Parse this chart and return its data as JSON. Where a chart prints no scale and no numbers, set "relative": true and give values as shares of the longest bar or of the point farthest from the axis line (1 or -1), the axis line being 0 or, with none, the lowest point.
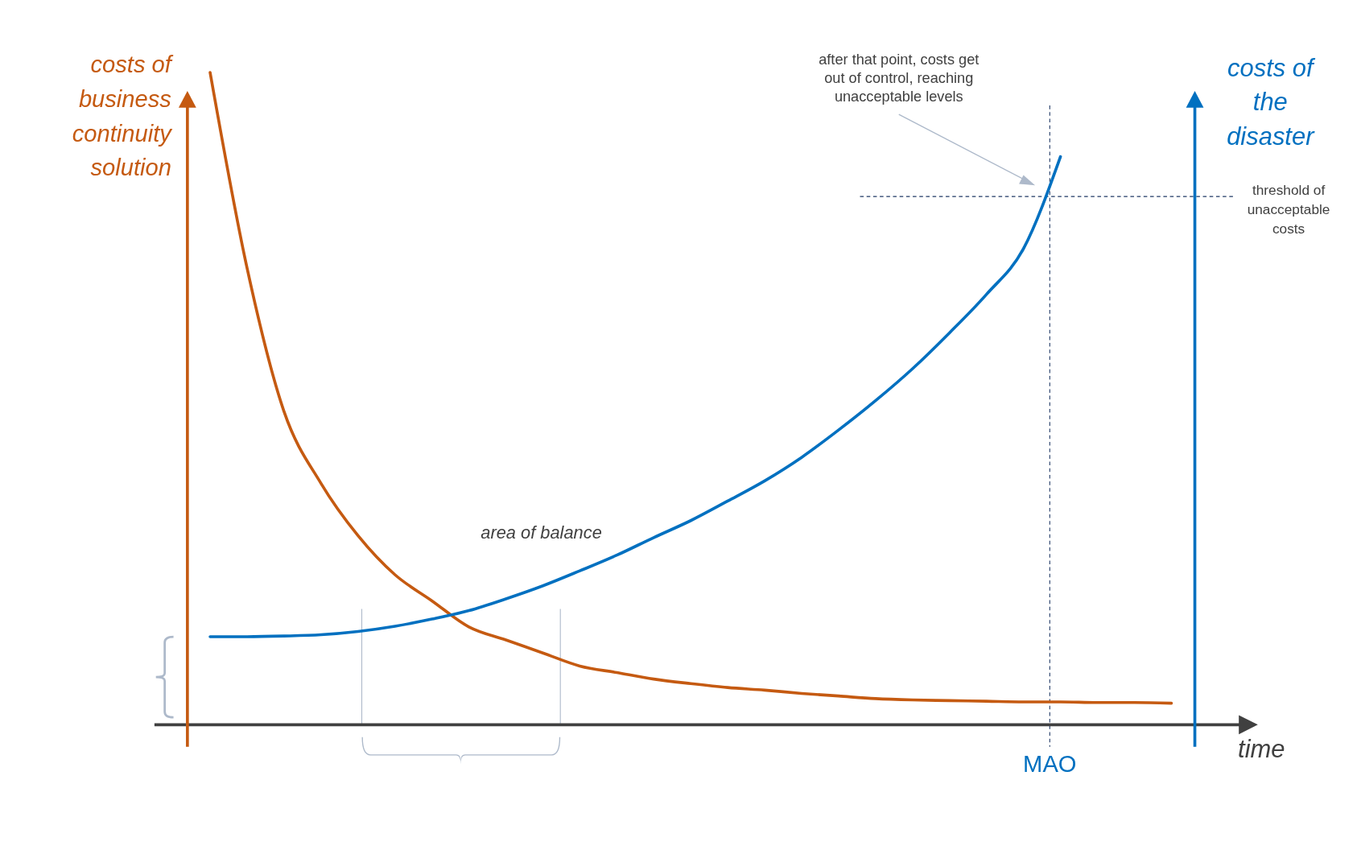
{
  "chart_data": {
    "type": "line",
    "relative": true,
    "xlabel": "time",
    "ylabel": "costs of business continuity solution",
    "y2label": "costs of the disaster",
    "categories": [
      null,
      null,
      null,
      null,
      null,
      null,
      null,
      null,
      null,
      null,
      null,
      null,
      null,
      null,
      null,
      null,
      null,
      null,
      null,
      null,
      null,
      null,
      null,
      null,
      null,
      null,
      null
    ],
    "series": [
      {
        "color": "#c55a11",
        "values": [
          1.0,
          0.7,
          0.48,
          0.37,
          0.29,
          0.23,
          0.19,
          0.15,
          0.13,
          0.11,
          0.09,
          0.08,
          0.07,
          0.063,
          0.057,
          0.053,
          0.048,
          0.044,
          0.04,
          0.038,
          0.037,
          0.036,
          0.035,
          0.035,
          0.034,
          0.034,
          0.033
        ]
      },
      {
        "color": "#0070c0",
        "values": [
          0.135,
          0.135,
          0.136,
          0.138,
          0.143,
          0.151,
          0.162,
          0.175,
          0.193,
          0.213,
          0.236,
          0.26,
          0.287,
          0.313,
          0.343,
          0.374,
          0.41,
          0.452,
          0.497,
          0.546,
          0.601,
          0.66,
          0.73,
          0.871,
          null,
          null,
          null
        ]
      }
    ],
    "ref_lines": [
      {
        "axis": "y",
        "value": 0.81,
        "label": "threshold of unacceptable costs",
        "color": "#1f3864",
        "line_style": "dashed"
      }
    ],
    "annotations": [
      "after that point, costs get out of control, reaching unacceptable levels",
      "area of balance",
      "MAO"
    ]
  }
}
